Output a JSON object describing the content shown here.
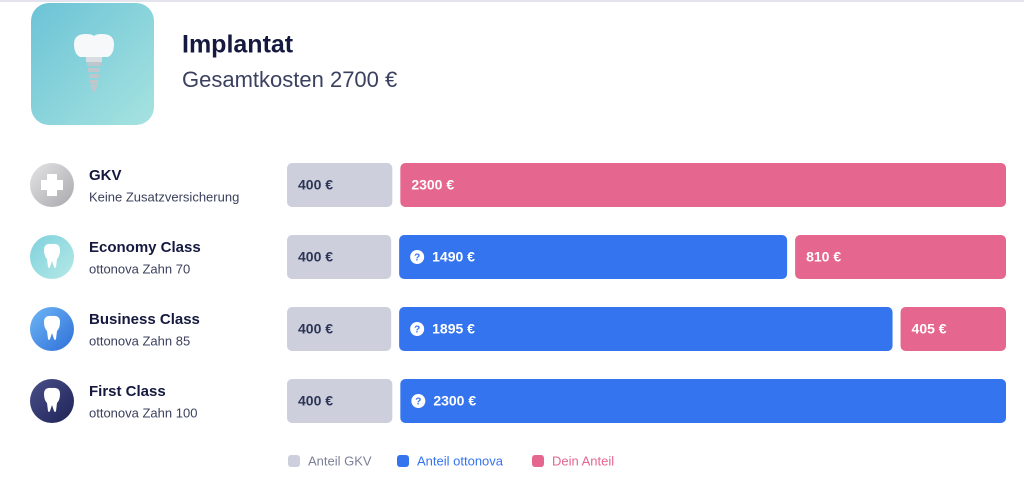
{
  "chart_data": {
    "type": "bar",
    "orientation": "horizontal",
    "stacked": true,
    "title": "Implantat",
    "subtitle": "Gesamtkosten 2700 €",
    "categories": [
      "GKV",
      "Economy Class",
      "Business Class",
      "First Class"
    ],
    "category_subtitles": [
      "Keine Zusatzversicherung",
      "ottonova Zahn 70",
      "ottonova Zahn 85",
      "ottonova Zahn 100"
    ],
    "series": [
      {
        "name": "Anteil GKV",
        "color": "#cdd0dc",
        "text_color": "#2d3557",
        "legend_text_color": "#7c8096",
        "values": [
          400,
          400,
          400,
          400
        ],
        "value_labels": [
          "400 €",
          "400 €",
          "400 €",
          "400 €"
        ]
      },
      {
        "name": "Anteil ottonova",
        "color": "#3574ef",
        "text_color": "#ffffff",
        "legend_text_color": "#3574ef",
        "values": [
          null,
          1490,
          1895,
          2300
        ],
        "value_labels": [
          null,
          "1490 €",
          "1895 €",
          "2300 €"
        ]
      },
      {
        "name": "Dein Anteil",
        "color": "#e5668f",
        "text_color": "#ffffff",
        "legend_text_color": "#e5668f",
        "values": [
          2300,
          810,
          405,
          null
        ],
        "value_labels": [
          "2300 €",
          "810 €",
          "405 €",
          null
        ]
      }
    ],
    "legend": "bottom"
  }
}
